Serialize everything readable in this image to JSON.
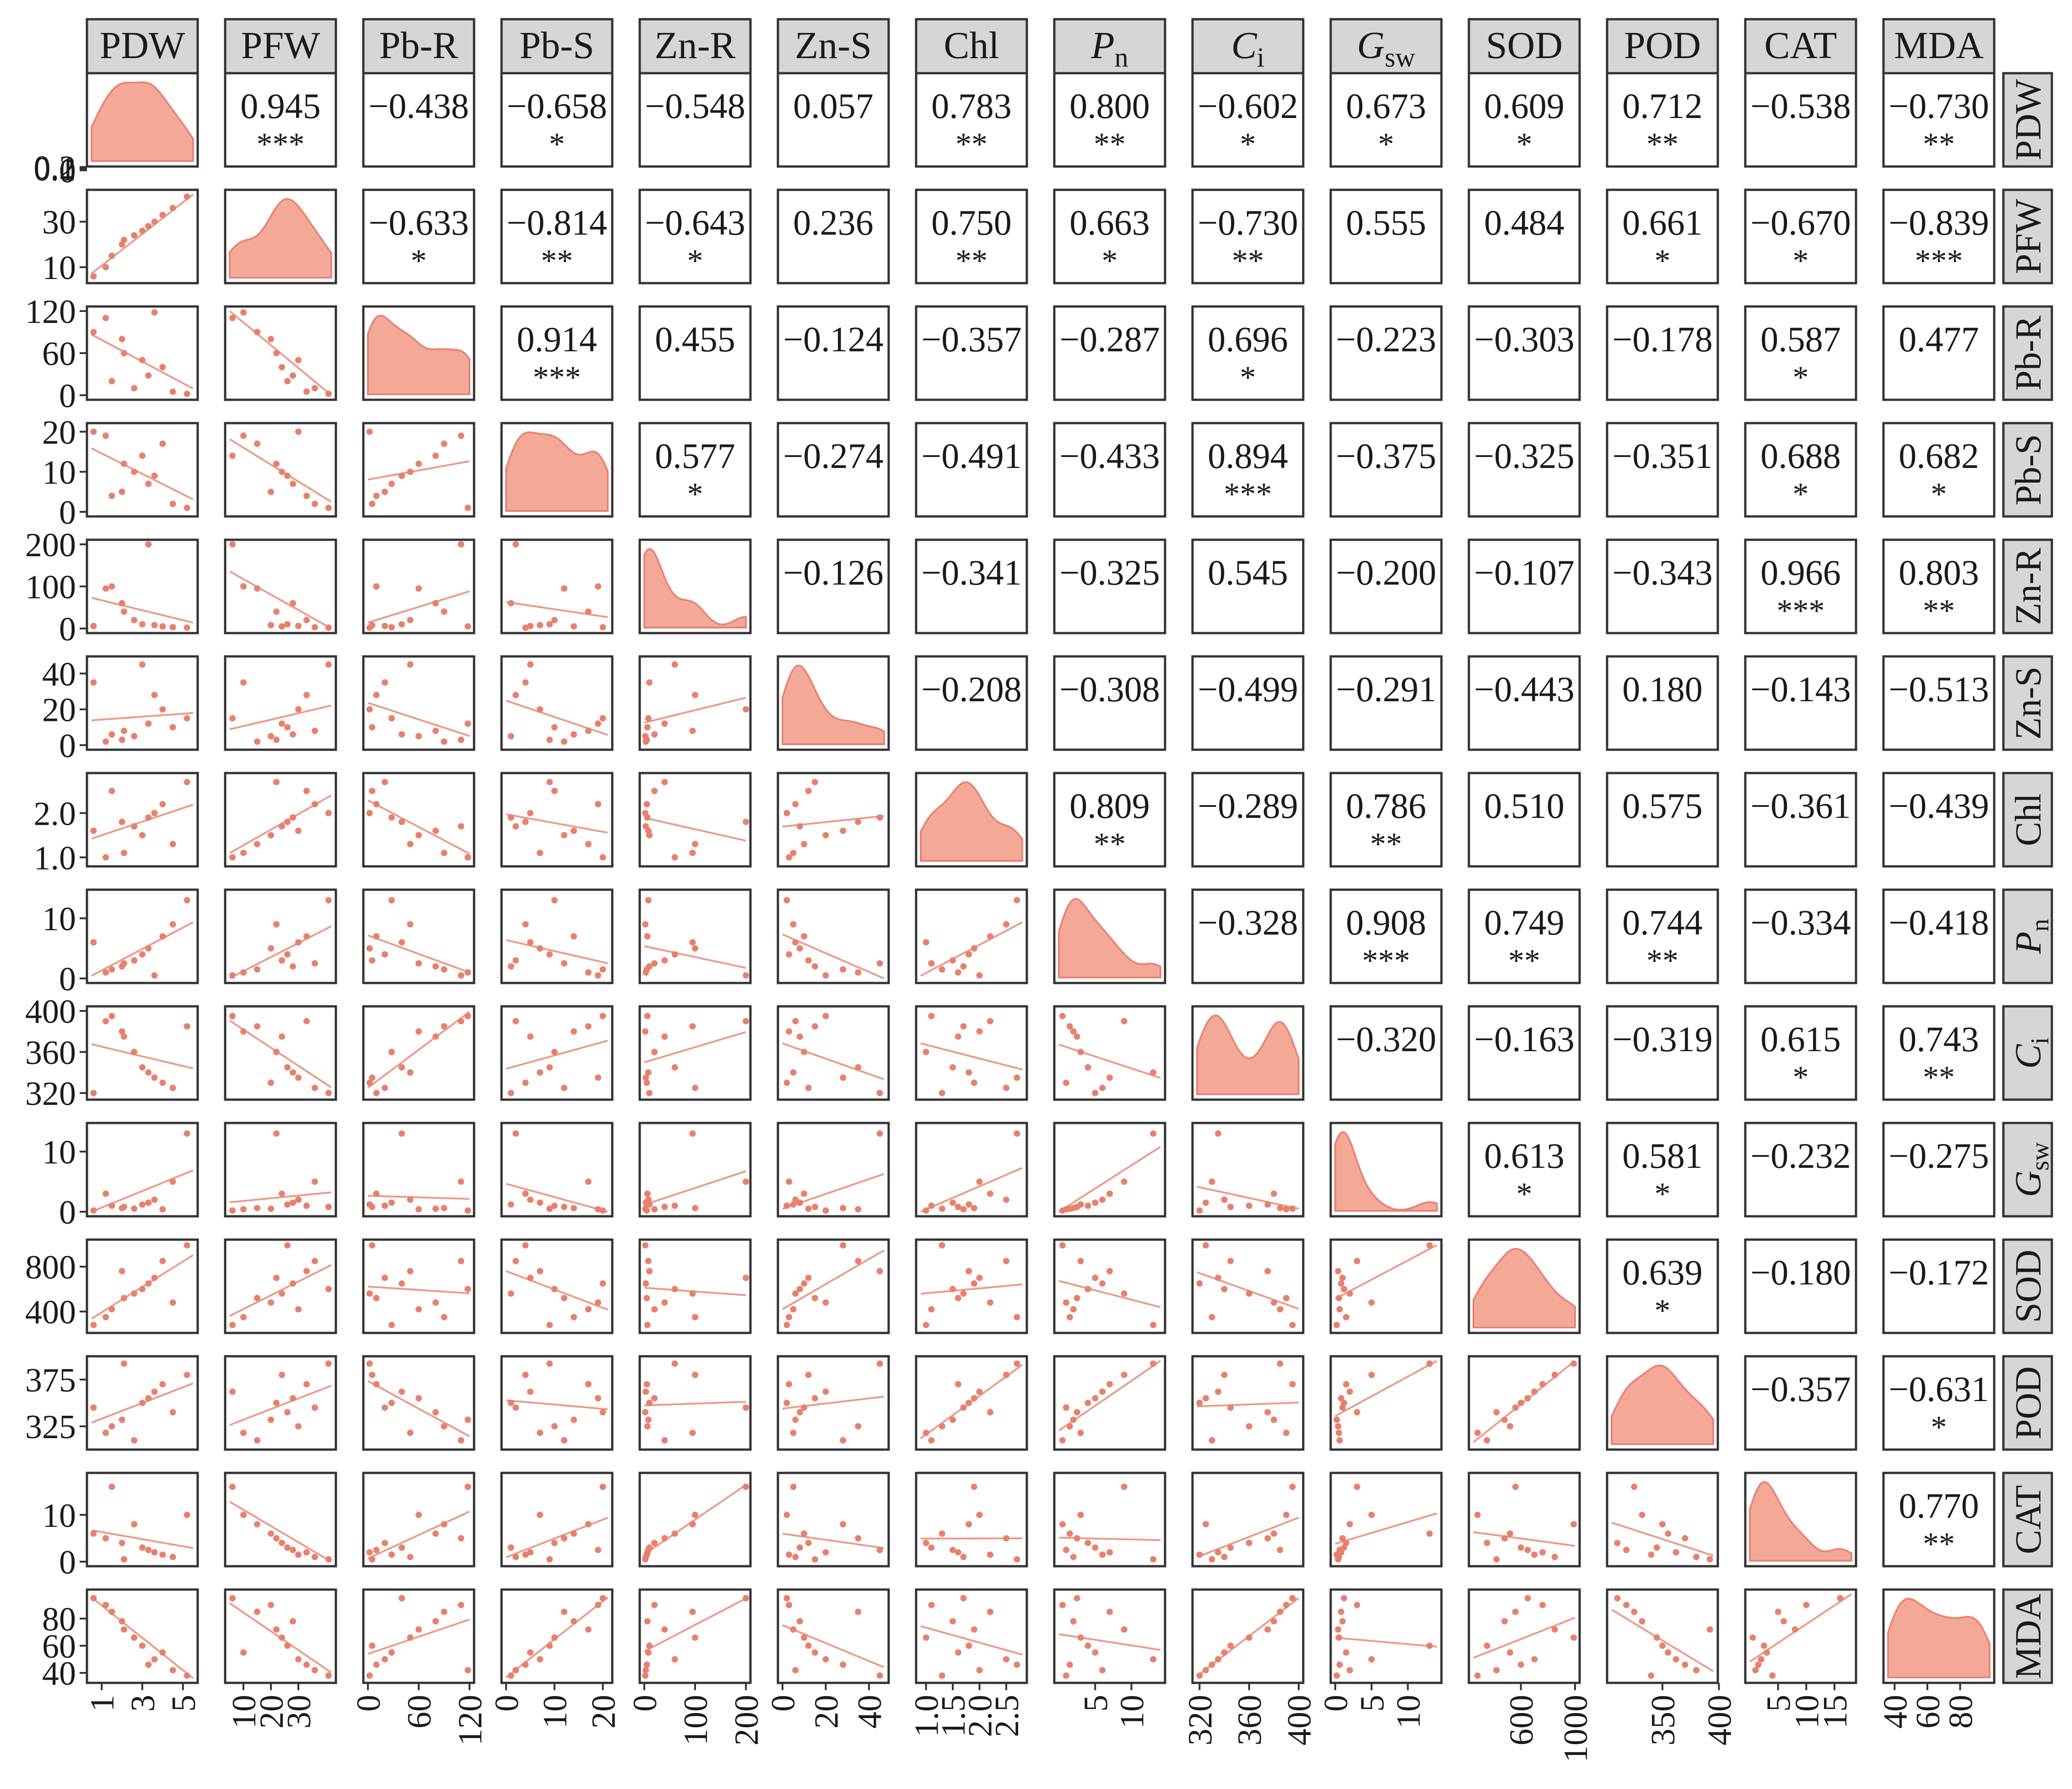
{
  "chart_data": {
    "type": "scatter",
    "variables": [
      {
        "id": "PDW",
        "label": "PDW",
        "sub": ""
      },
      {
        "id": "PFW",
        "label": "PFW",
        "sub": ""
      },
      {
        "id": "Pb-R",
        "label": "Pb-R",
        "sub": ""
      },
      {
        "id": "Pb-S",
        "label": "Pb-S",
        "sub": ""
      },
      {
        "id": "Zn-R",
        "label": "Zn-R",
        "sub": ""
      },
      {
        "id": "Zn-S",
        "label": "Zn-S",
        "sub": ""
      },
      {
        "id": "Chl",
        "label": "Chl",
        "sub": ""
      },
      {
        "id": "Pn",
        "label": "P",
        "sub": "n"
      },
      {
        "id": "Ci",
        "label": "C",
        "sub": "i"
      },
      {
        "id": "Gsw",
        "label": "G",
        "sub": "sw"
      },
      {
        "id": "SOD",
        "label": "SOD",
        "sub": ""
      },
      {
        "id": "POD",
        "label": "POD",
        "sub": ""
      },
      {
        "id": "CAT",
        "label": "CAT",
        "sub": ""
      },
      {
        "id": "MDA",
        "label": "MDA",
        "sub": ""
      }
    ],
    "ranges": [
      [
        0.5,
        5.5
      ],
      [
        5,
        42
      ],
      [
        0,
        120
      ],
      [
        0,
        21
      ],
      [
        0,
        200
      ],
      [
        0,
        47
      ],
      [
        0.9,
        2.8
      ],
      [
        0,
        14
      ],
      [
        318,
        400
      ],
      [
        0,
        14
      ],
      [
        250,
        1000
      ],
      [
        305,
        395
      ],
      [
        0,
        18
      ],
      [
        36,
        98
      ]
    ],
    "y_ticks": [
      {
        "values": [
          0,
          0.1,
          0.2
        ],
        "labels": [
          "0",
          "0.1",
          "0.2"
        ]
      },
      {
        "values": [
          10,
          30
        ],
        "labels": [
          "10",
          "30"
        ]
      },
      {
        "values": [
          0,
          60,
          120
        ],
        "labels": [
          "0",
          "60",
          "120"
        ]
      },
      {
        "values": [
          0,
          10,
          20
        ],
        "labels": [
          "0",
          "10",
          "20"
        ]
      },
      {
        "values": [
          0,
          100,
          200
        ],
        "labels": [
          "0",
          "100",
          "200"
        ]
      },
      {
        "values": [
          0,
          20,
          40
        ],
        "labels": [
          "0",
          "20",
          "40"
        ]
      },
      {
        "values": [
          1.0,
          2.0
        ],
        "labels": [
          "1.0",
          "2.0"
        ]
      },
      {
        "values": [
          0,
          10
        ],
        "labels": [
          "0",
          "10"
        ]
      },
      {
        "values": [
          320,
          360,
          400
        ],
        "labels": [
          "320",
          "360",
          "400"
        ]
      },
      {
        "values": [
          0,
          10
        ],
        "labels": [
          "0",
          "10"
        ]
      },
      {
        "values": [
          400,
          800
        ],
        "labels": [
          "400",
          "800"
        ]
      },
      {
        "values": [
          325,
          375
        ],
        "labels": [
          "325",
          "375"
        ]
      },
      {
        "values": [
          0,
          10
        ],
        "labels": [
          "0",
          "10"
        ]
      },
      {
        "values": [
          40,
          60,
          80
        ],
        "labels": [
          "40",
          "60",
          "80"
        ]
      }
    ],
    "x_ticks": [
      {
        "values": [
          1,
          3,
          5
        ],
        "labels": [
          "1",
          "3",
          "5"
        ]
      },
      {
        "values": [
          10,
          20,
          30
        ],
        "labels": [
          "10",
          "20",
          "30"
        ]
      },
      {
        "values": [
          0,
          60,
          120
        ],
        "labels": [
          "0",
          "60",
          "120"
        ]
      },
      {
        "values": [
          0,
          10,
          20
        ],
        "labels": [
          "0",
          "10",
          "20"
        ]
      },
      {
        "values": [
          0,
          100,
          200
        ],
        "labels": [
          "0",
          "100",
          "200"
        ]
      },
      {
        "values": [
          0,
          20,
          40
        ],
        "labels": [
          "0",
          "20",
          "40"
        ]
      },
      {
        "values": [
          1.0,
          1.5,
          2.0,
          2.5
        ],
        "labels": [
          "1.0",
          "1.5",
          "2.0",
          "2.5"
        ]
      },
      {
        "values": [
          5,
          10
        ],
        "labels": [
          "5",
          "10"
        ]
      },
      {
        "values": [
          320,
          360,
          400
        ],
        "labels": [
          "320",
          "360",
          "400"
        ]
      },
      {
        "values": [
          0,
          5,
          10
        ],
        "labels": [
          "0",
          "5",
          "10"
        ]
      },
      {
        "values": [
          600,
          1000
        ],
        "labels": [
          "600",
          "1000"
        ]
      },
      {
        "values": [
          350,
          400
        ],
        "labels": [
          "350",
          "400"
        ]
      },
      {
        "values": [
          5,
          10,
          15
        ],
        "labels": [
          "5",
          "10",
          "15"
        ]
      },
      {
        "values": [
          40,
          60,
          80
        ],
        "labels": [
          "40",
          "60",
          "80"
        ]
      }
    ],
    "observations": {
      "PDW": [
        0.6,
        1.2,
        1.5,
        2.0,
        2.1,
        2.6,
        3.0,
        3.3,
        3.6,
        4.0,
        4.5,
        5.2
      ],
      "PFW": [
        6,
        10,
        15,
        20,
        22,
        24,
        26,
        28,
        30,
        33,
        36,
        41
      ],
      "Pb-R": [
        118,
        110,
        90,
        80,
        60,
        50,
        40,
        28,
        20,
        10,
        5,
        2
      ],
      "Pb-S": [
        20,
        19,
        17,
        14,
        12,
        10,
        9,
        7,
        5,
        4,
        2,
        1
      ],
      "Zn-R": [
        200,
        100,
        95,
        60,
        40,
        20,
        10,
        8,
        6,
        5,
        3,
        2
      ],
      "Zn-S": [
        45,
        35,
        28,
        20,
        15,
        12,
        10,
        8,
        6,
        5,
        3,
        2
      ],
      "Chl": [
        1.0,
        1.1,
        1.3,
        1.5,
        1.6,
        1.7,
        1.8,
        1.9,
        2.0,
        2.2,
        2.5,
        2.7
      ],
      "Pn": [
        0.5,
        1,
        1.5,
        2,
        2.5,
        3,
        4,
        5,
        6,
        7,
        9,
        13
      ],
      "Ci": [
        395,
        390,
        385,
        380,
        375,
        360,
        345,
        340,
        335,
        330,
        325,
        320
      ],
      "Gsw": [
        0.2,
        0.4,
        0.5,
        0.6,
        0.8,
        1.0,
        1.2,
        1.5,
        2.0,
        3.0,
        5.0,
        13.0
      ],
      "SOD": [
        280,
        350,
        420,
        480,
        520,
        560,
        600,
        650,
        700,
        760,
        850,
        990
      ],
      "POD": [
        310,
        318,
        325,
        332,
        340,
        345,
        350,
        355,
        362,
        370,
        380,
        392
      ],
      "CAT": [
        16,
        10,
        8,
        6,
        5,
        4,
        3,
        2.5,
        2,
        1.5,
        1,
        0.5
      ],
      "MDA": [
        95,
        90,
        85,
        78,
        72,
        66,
        60,
        55,
        50,
        46,
        42,
        38
      ]
    },
    "correlations": {
      "PDW": {
        "PFW": "0.945",
        "Pb-R": "−0.438",
        "Pb-S": "−0.658",
        "Zn-R": "−0.548",
        "Zn-S": "0.057",
        "Chl": "0.783",
        "Pn": "0.800",
        "Ci": "−0.602",
        "Gsw": "0.673",
        "SOD": "0.609",
        "POD": "0.712",
        "CAT": "−0.538",
        "MDA": "−0.730"
      },
      "PFW": {
        "Pb-R": "−0.633",
        "Pb-S": "−0.814",
        "Zn-R": "−0.643",
        "Zn-S": "0.236",
        "Chl": "0.750",
        "Pn": "0.663",
        "Ci": "−0.730",
        "Gsw": "0.555",
        "SOD": "0.484",
        "POD": "0.661",
        "CAT": "−0.670",
        "MDA": "−0.839"
      },
      "Pb-R": {
        "Pb-S": "0.914",
        "Zn-R": "0.455",
        "Zn-S": "−0.124",
        "Chl": "−0.357",
        "Pn": "−0.287",
        "Ci": "0.696",
        "Gsw": "−0.223",
        "SOD": "−0.303",
        "POD": "−0.178",
        "CAT": "0.587",
        "MDA": "0.477"
      },
      "Pb-S": {
        "Zn-R": "0.577",
        "Zn-S": "−0.274",
        "Chl": "−0.491",
        "Pn": "−0.433",
        "Ci": "0.894",
        "Gsw": "−0.375",
        "SOD": "−0.325",
        "POD": "−0.351",
        "CAT": "0.688",
        "MDA": "0.682"
      },
      "Zn-R": {
        "Zn-S": "−0.126",
        "Chl": "−0.341",
        "Pn": "−0.325",
        "Ci": "0.545",
        "Gsw": "−0.200",
        "SOD": "−0.107",
        "POD": "−0.343",
        "CAT": "0.966",
        "MDA": "0.803"
      },
      "Zn-S": {
        "Chl": "−0.208",
        "Pn": "−0.308",
        "Ci": "−0.499",
        "Gsw": "−0.291",
        "SOD": "−0.443",
        "POD": "0.180",
        "CAT": "−0.143",
        "MDA": "−0.513"
      },
      "Chl": {
        "Pn": "0.809",
        "Ci": "−0.289",
        "Gsw": "0.786",
        "SOD": "0.510",
        "POD": "0.575",
        "CAT": "−0.361",
        "MDA": "−0.439"
      },
      "Pn": {
        "Ci": "−0.328",
        "Gsw": "0.908",
        "SOD": "0.749",
        "POD": "0.744",
        "CAT": "−0.334",
        "MDA": "−0.418"
      },
      "Ci": {
        "Gsw": "−0.320",
        "SOD": "−0.163",
        "POD": "−0.319",
        "CAT": "0.615",
        "MDA": "0.743"
      },
      "Gsw": {
        "SOD": "0.613",
        "POD": "0.581",
        "CAT": "−0.232",
        "MDA": "−0.275"
      },
      "SOD": {
        "POD": "0.639",
        "CAT": "−0.180",
        "MDA": "−0.172"
      },
      "POD": {
        "CAT": "−0.357",
        "MDA": "−0.631"
      },
      "CAT": {
        "MDA": "0.770"
      }
    },
    "significance": {
      "PDW": {
        "PFW": "***",
        "Pb-S": "*",
        "Chl": "**",
        "Pn": "**",
        "Ci": "*",
        "Gsw": "*",
        "SOD": "*",
        "POD": "**",
        "MDA": "**"
      },
      "PFW": {
        "Pb-R": "*",
        "Pb-S": "**",
        "Zn-R": "*",
        "Chl": "**",
        "Pn": "*",
        "Ci": "**",
        "POD": "*",
        "CAT": "*",
        "MDA": "***"
      },
      "Pb-R": {
        "Pb-S": "***",
        "Ci": "*",
        "CAT": "*"
      },
      "Pb-S": {
        "Zn-R": "*",
        "Ci": "***",
        "CAT": "*",
        "MDA": "*"
      },
      "Zn-R": {
        "CAT": "***",
        "MDA": "**"
      },
      "Zn-S": {},
      "Chl": {
        "Pn": "**",
        "Gsw": "**"
      },
      "Pn": {
        "Gsw": "***",
        "SOD": "**",
        "POD": "**"
      },
      "Ci": {
        "CAT": "*",
        "MDA": "**"
      },
      "Gsw": {
        "SOD": "*",
        "POD": "*"
      },
      "SOD": {
        "POD": "*"
      },
      "POD": {
        "MDA": "*"
      },
      "CAT": {
        "MDA": "**"
      }
    },
    "colors": {
      "density_fill": "#f4a898",
      "density_line": "#e88474",
      "point": "#e8806c",
      "fit_line": "#ec9a88",
      "strip_fill": "#d6d6d6",
      "frame": "#333333"
    }
  }
}
